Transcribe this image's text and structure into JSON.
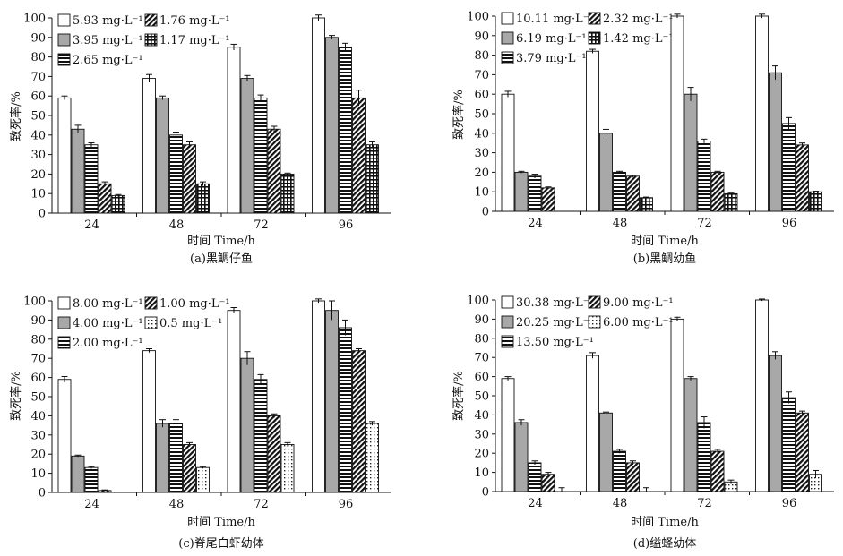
{
  "figure": {
    "xlabel": "时间 Time/h",
    "ylabel": "致死率/%"
  },
  "chart_data": [
    {
      "type": "bar",
      "caption": "(a)黑鲷仔鱼",
      "xlabel": "时间 Time/h",
      "ylabel": "致死率/%",
      "ylim": [
        0,
        100
      ],
      "yticks": [
        0,
        10,
        20,
        30,
        40,
        50,
        60,
        70,
        80,
        90,
        100
      ],
      "categories": [
        "24",
        "48",
        "72",
        "96"
      ],
      "legend_position": "top-left",
      "series": [
        {
          "name": "5.93 mg·L⁻¹",
          "pattern": "white",
          "values": [
            59,
            69,
            85,
            100
          ],
          "errors": [
            1,
            2,
            1.5,
            1.5
          ]
        },
        {
          "name": "3.95 mg·L⁻¹",
          "pattern": "gray",
          "values": [
            43,
            59,
            69,
            90
          ],
          "errors": [
            2,
            1,
            1.5,
            1
          ]
        },
        {
          "name": "2.65 mg·L⁻¹",
          "pattern": "hstripe",
          "values": [
            35,
            40,
            59,
            85
          ],
          "errors": [
            1,
            1.5,
            1.5,
            2
          ]
        },
        {
          "name": "1.76 mg·L⁻¹",
          "pattern": "diag",
          "values": [
            15,
            35,
            43,
            59
          ],
          "errors": [
            1,
            1.5,
            1.5,
            4
          ]
        },
        {
          "name": "1.17 mg·L⁻¹",
          "pattern": "grid",
          "values": [
            9,
            15,
            20,
            35
          ],
          "errors": [
            0.5,
            1,
            0.5,
            1.5
          ]
        }
      ]
    },
    {
      "type": "bar",
      "caption": "(b)黑鲷幼鱼",
      "xlabel": "时间 Time/h",
      "ylabel": "致死率/%",
      "ylim": [
        0,
        100
      ],
      "yticks": [
        0,
        10,
        20,
        30,
        40,
        50,
        60,
        70,
        80,
        90,
        100
      ],
      "categories": [
        "24",
        "48",
        "72",
        "96"
      ],
      "legend_position": "top-left",
      "series": [
        {
          "name": "10.11 mg·L⁻¹",
          "pattern": "white",
          "values": [
            60,
            82,
            100,
            100
          ],
          "errors": [
            1.5,
            1,
            1,
            1
          ]
        },
        {
          "name": "6.19 mg·L⁻¹",
          "pattern": "gray",
          "values": [
            20,
            40,
            60,
            71
          ],
          "errors": [
            0.5,
            2,
            3.5,
            3.5
          ]
        },
        {
          "name": "3.79 mg·L⁻¹",
          "pattern": "hstripe",
          "values": [
            18,
            20,
            36,
            45
          ],
          "errors": [
            1,
            0.5,
            1,
            3
          ]
        },
        {
          "name": "2.32 mg·L⁻¹",
          "pattern": "diag",
          "values": [
            12,
            18,
            20,
            34
          ],
          "errors": [
            0.5,
            0.5,
            0.5,
            1
          ]
        },
        {
          "name": "1.42 mg·L⁻¹",
          "pattern": "grid",
          "values": [
            0,
            7,
            9,
            10
          ],
          "errors": [
            0,
            0.3,
            0.3,
            0.3
          ]
        }
      ]
    },
    {
      "type": "bar",
      "caption": "(c)脊尾白虾幼体",
      "xlabel": "时间 Time/h",
      "ylabel": "致死率/%",
      "ylim": [
        0,
        100
      ],
      "yticks": [
        0,
        10,
        20,
        30,
        40,
        50,
        60,
        70,
        80,
        90,
        100
      ],
      "categories": [
        "24",
        "48",
        "72",
        "96"
      ],
      "legend_position": "top-left",
      "series": [
        {
          "name": "8.00 mg·L⁻¹",
          "pattern": "white",
          "values": [
            59,
            74,
            95,
            100
          ],
          "errors": [
            1.5,
            1,
            1.5,
            1
          ]
        },
        {
          "name": "4.00 mg·L⁻¹",
          "pattern": "gray",
          "values": [
            19,
            36,
            70,
            95
          ],
          "errors": [
            0.5,
            2,
            3.5,
            5
          ]
        },
        {
          "name": "2.00 mg·L⁻¹",
          "pattern": "hstripe",
          "values": [
            13,
            36,
            59,
            86
          ],
          "errors": [
            0.5,
            2,
            2.5,
            4
          ]
        },
        {
          "name": "1.00 mg·L⁻¹",
          "pattern": "diag",
          "values": [
            1,
            25,
            40,
            74
          ],
          "errors": [
            0.3,
            1,
            1,
            1
          ]
        },
        {
          "name": "0.5 mg·L⁻¹",
          "pattern": "dots",
          "values": [
            0,
            13,
            25,
            36
          ],
          "errors": [
            0,
            0.5,
            1,
            1
          ]
        }
      ]
    },
    {
      "type": "bar",
      "caption": "(d)缢蛏幼体",
      "xlabel": "时间 Time/h",
      "ylabel": "致死率/%",
      "ylim": [
        0,
        100
      ],
      "yticks": [
        0,
        10,
        20,
        30,
        40,
        50,
        60,
        70,
        80,
        90,
        100
      ],
      "categories": [
        "24",
        "48",
        "72",
        "96"
      ],
      "legend_position": "top-left",
      "series": [
        {
          "name": "30.38 mg·L⁻¹",
          "pattern": "white",
          "values": [
            59,
            71,
            90,
            100
          ],
          "errors": [
            1,
            1.5,
            1,
            0.5
          ]
        },
        {
          "name": "20.25 mg·L⁻¹",
          "pattern": "gray",
          "values": [
            36,
            41,
            59,
            71
          ],
          "errors": [
            1.5,
            0.5,
            1,
            2
          ]
        },
        {
          "name": "13.50 mg·L⁻¹",
          "pattern": "hstripe",
          "values": [
            15,
            21,
            36,
            49
          ],
          "errors": [
            1,
            1,
            3,
            3
          ]
        },
        {
          "name": "9.00 mg·L⁻¹",
          "pattern": "diag",
          "values": [
            9,
            15,
            21,
            41
          ],
          "errors": [
            1,
            1,
            1,
            1
          ]
        },
        {
          "name": "6.00 mg·L⁻¹",
          "pattern": "dots",
          "values": [
            0,
            0,
            5,
            9
          ],
          "errors": [
            2,
            2,
            1,
            2
          ]
        }
      ]
    }
  ]
}
